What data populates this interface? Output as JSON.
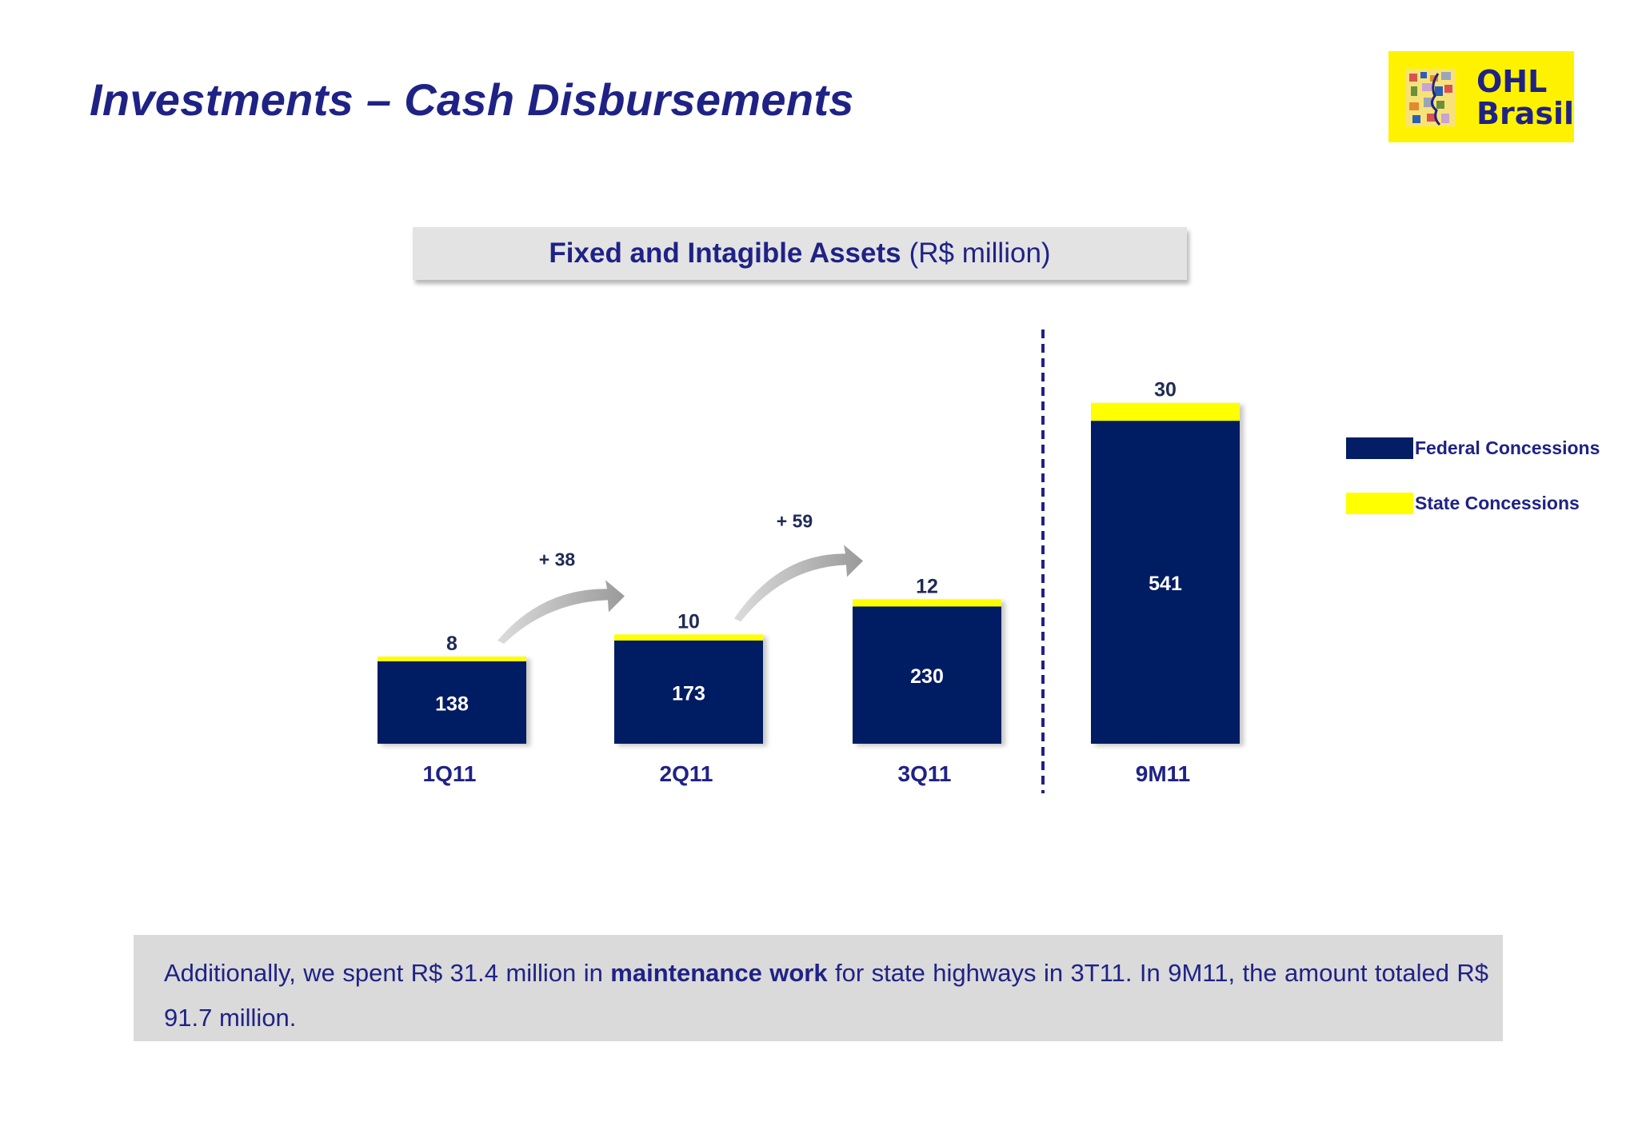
{
  "slide": {
    "title": "Investments – Cash Disbursements",
    "logo": {
      "line1": "OHL",
      "line2": "Brasil"
    }
  },
  "chart_header": {
    "title_bold": "Fixed and Intagible Assets",
    "unit": "(R$ million)"
  },
  "chart_data": {
    "type": "bar",
    "stacked": true,
    "title": "Fixed and Intagible Assets (R$ million)",
    "categories": [
      "1Q11",
      "2Q11",
      "3Q11",
      "9M11"
    ],
    "series": [
      {
        "name": "Federal Concessions",
        "color": "#031e64",
        "values": [
          138,
          173,
          230,
          541
        ]
      },
      {
        "name": "State Concessions",
        "color": "#ffff00",
        "values": [
          8,
          10,
          12,
          30
        ]
      }
    ],
    "annotations": [
      {
        "from": "1Q11",
        "to": "2Q11",
        "label": "+ 38"
      },
      {
        "from": "2Q11",
        "to": "3Q11",
        "label": "+ 59"
      }
    ],
    "separator_before": "9M11",
    "legend": "right",
    "grid": false,
    "ylim": [
      0,
      571
    ]
  },
  "note": {
    "part1": "Additionally, we spent R$ 31.4 million in ",
    "bold": "maintenance work",
    "part2": " for state highways in 3T11. In 9M11, the amount totaled R$ 91.7 million."
  }
}
